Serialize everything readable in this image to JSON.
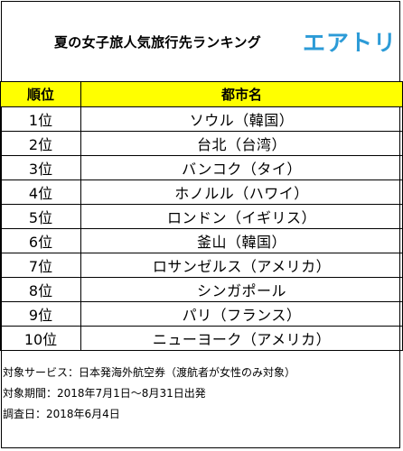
{
  "title": "夏の女子旅人気旅行先ランキング",
  "logo_text": "エアトリ",
  "colors": {
    "header_bg": "#ffff00",
    "logo": "#2c9bd7"
  },
  "table": {
    "headers": [
      "順位",
      "都市名"
    ],
    "rows": [
      {
        "rank": "1位",
        "city": "ソウル（韓国）"
      },
      {
        "rank": "2位",
        "city": "台北（台湾）"
      },
      {
        "rank": "3位",
        "city": "バンコク（タイ）"
      },
      {
        "rank": "4位",
        "city": "ホノルル（ハワイ）"
      },
      {
        "rank": "5位",
        "city": "ロンドン（イギリス）"
      },
      {
        "rank": "6位",
        "city": "釜山（韓国）"
      },
      {
        "rank": "7位",
        "city": "ロサンゼルス（アメリカ）"
      },
      {
        "rank": "8位",
        "city": "シンガポール"
      },
      {
        "rank": "9位",
        "city": "パリ（フランス）"
      },
      {
        "rank": "10位",
        "city": "ニューヨーク（アメリカ）"
      }
    ]
  },
  "notes": [
    "対象サービス：日本発海外航空券（渡航者が女性のみ対象）",
    "対象期間：2018年7月1日～8月31日出発",
    "調査日：2018年6月4日"
  ]
}
